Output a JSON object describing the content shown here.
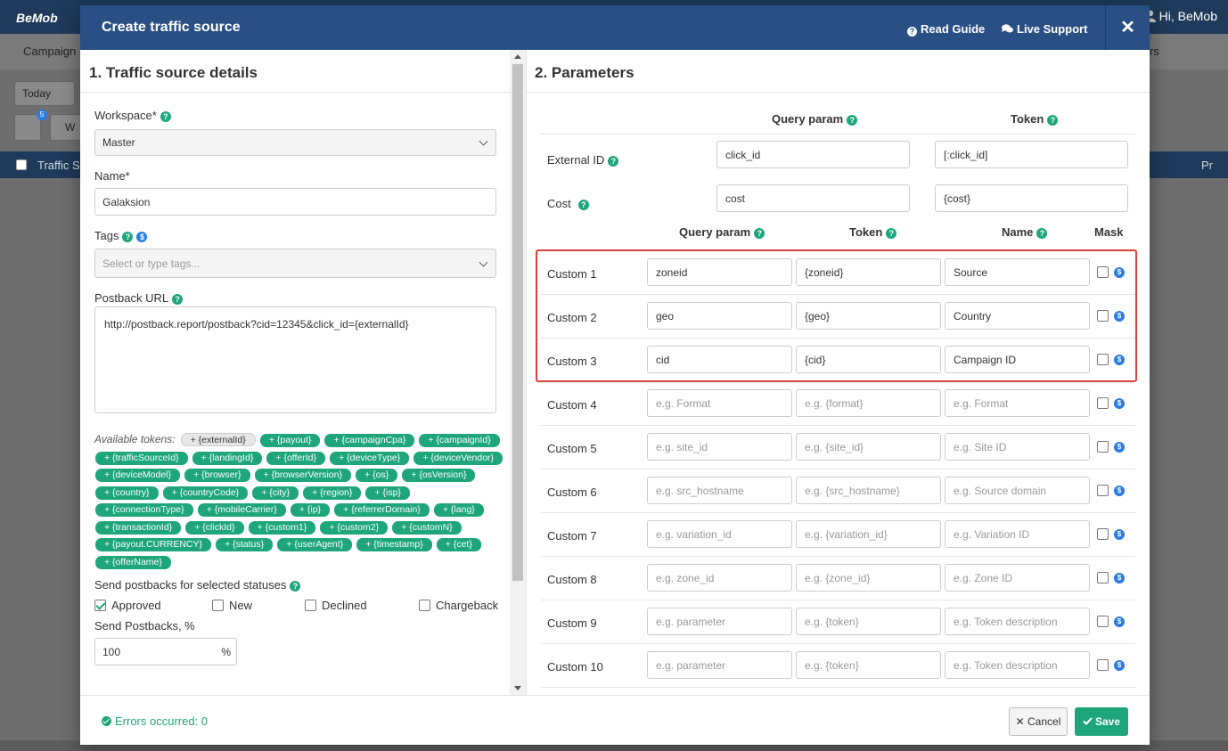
{
  "background": {
    "logo": "BeMob",
    "user_greeting": "Hi, BeMob",
    "nav_campaigns": "Campaign",
    "nav_right": "rs",
    "date_filter": "Today",
    "badge_count": "5",
    "tool_w": "W",
    "table_col_traffic": "Traffic So",
    "table_col_right": "Pr"
  },
  "modal": {
    "title": "Create traffic source",
    "read_guide": "Read Guide",
    "live_support": "Live Support",
    "close": "✕"
  },
  "details": {
    "section_title": "1. Traffic source details",
    "workspace_label": "Workspace*",
    "workspace_value": "Master",
    "name_label": "Name*",
    "name_value": "Galaksion",
    "tags_label": "Tags",
    "tags_placeholder": "Select or type tags...",
    "postback_label": "Postback URL",
    "postback_value": "http://postback.report/postback?cid=12345&click_id={externalId}",
    "tokens_label": "Available tokens:",
    "tokens": [
      "+ {externalId}",
      "+ {payout}",
      "+ {campaignCpa}",
      "+ {campaignId}",
      "+ {trafficSourceId}",
      "+ {landingId}",
      "+ {offerId}",
      "+ {deviceType}",
      "+ {deviceVendor}",
      "+ {deviceModel}",
      "+ {browser}",
      "+ {browserVersion}",
      "+ {os}",
      "+ {osVersion}",
      "+ {country}",
      "+ {countryCode}",
      "+ {city}",
      "+ {region}",
      "+ {isp}",
      "+ {connectionType}",
      "+ {mobileCarrier}",
      "+ {ip}",
      "+ {referrerDomain}",
      "+ {lang}",
      "+ {transactionId}",
      "+ {clickId}",
      "+ {custom1}",
      "+ {custom2}",
      "+ {customN}",
      "+ {payout.CURRENCY}",
      "+ {status}",
      "+ {userAgent}",
      "+ {timestamp}",
      "+ {cet}",
      "+ {offerName}"
    ],
    "statuses_label": "Send postbacks for selected statuses",
    "statuses": [
      {
        "label": "Approved",
        "checked": true
      },
      {
        "label": "New",
        "checked": false
      },
      {
        "label": "Declined",
        "checked": false
      },
      {
        "label": "Chargeback",
        "checked": false
      }
    ],
    "send_pct_label": "Send Postbacks, %",
    "send_pct_value": "100",
    "pct_sign": "%"
  },
  "params": {
    "section_title": "2. Parameters",
    "head_query": "Query param",
    "head_token": "Token",
    "head_name": "Name",
    "head_mask": "Mask",
    "external_id": {
      "label": "External ID",
      "query": "click_id",
      "token": "[:click_id]"
    },
    "cost": {
      "label": "Cost",
      "query": "cost",
      "token": "{cost}"
    },
    "customs": [
      {
        "label": "Custom 1",
        "query": "zoneid",
        "token": "{zoneid}",
        "name": "Source",
        "filled": true
      },
      {
        "label": "Custom 2",
        "query": "geo",
        "token": "{geo}",
        "name": "Country",
        "filled": true
      },
      {
        "label": "Custom 3",
        "query": "cid",
        "token": "{cid}",
        "name": "Campaign ID",
        "filled": true
      },
      {
        "label": "Custom 4",
        "query": "e.g. Format",
        "token": "e.g. {format}",
        "name": "e.g. Format",
        "filled": false
      },
      {
        "label": "Custom 5",
        "query": "e.g. site_id",
        "token": "e.g. {site_id}",
        "name": "e.g. Site ID",
        "filled": false
      },
      {
        "label": "Custom 6",
        "query": "e.g. src_hostname",
        "token": "e.g. {src_hostname}",
        "name": "e.g. Source domain",
        "filled": false
      },
      {
        "label": "Custom 7",
        "query": "e.g. variation_id",
        "token": "e.g. {variation_id}",
        "name": "e.g. Variation ID",
        "filled": false
      },
      {
        "label": "Custom 8",
        "query": "e.g. zone_id",
        "token": "e.g. {zone_id}",
        "name": "e.g. Zone ID",
        "filled": false
      },
      {
        "label": "Custom 9",
        "query": "e.g. parameter",
        "token": "e.g. {token}",
        "name": "e.g. Token description",
        "filled": false
      },
      {
        "label": "Custom 10",
        "query": "e.g. parameter",
        "token": "e.g. {token}",
        "name": "e.g. Token description",
        "filled": false
      }
    ]
  },
  "footer": {
    "errors": "Errors occurred: 0",
    "cancel": "✕ Cancel",
    "save": "Save"
  },
  "colors": {
    "header": "#294f84",
    "accent": "#1ea67a",
    "highlight": "#d9413a"
  }
}
